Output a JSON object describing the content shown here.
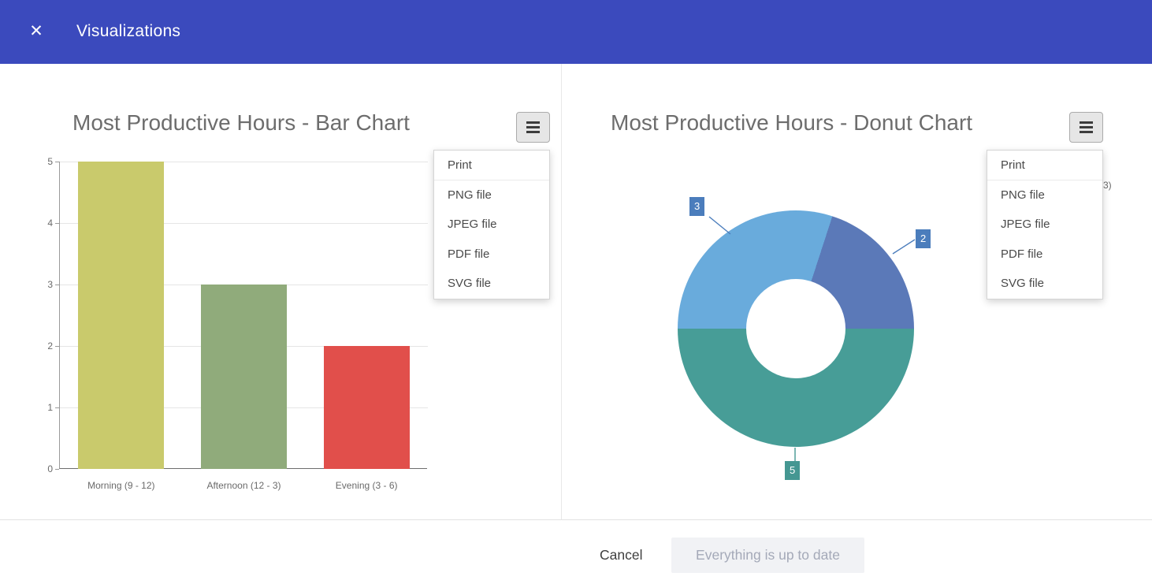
{
  "titlebar": {
    "title": "Visualizations",
    "close_icon": "✕"
  },
  "export_menu": {
    "items": [
      "Print",
      "PNG file",
      "JPEG file",
      "PDF file",
      "SVG file"
    ]
  },
  "chart_data": [
    {
      "type": "bar",
      "title": "Most Productive Hours - Bar Chart",
      "categories": [
        "Morning (9 - 12)",
        "Afternoon (12 - 3)",
        "Evening (3 - 6)"
      ],
      "values": [
        5,
        3,
        2
      ],
      "bar_colors": [
        "#c9ca6c",
        "#90ab7b",
        "#e14f4b"
      ],
      "xlabel": "",
      "ylabel": "",
      "ylim": [
        0,
        5
      ],
      "yticks": [
        0,
        1,
        2,
        3,
        4,
        5
      ],
      "grid": true,
      "legend_position": "none"
    },
    {
      "type": "donut",
      "title": "Most Productive Hours - Donut Chart",
      "categories": [
        "Morning (9 - 12)",
        "Afternoon (12 - 3)",
        "Evening (3 - 6)"
      ],
      "values": [
        5,
        3,
        2
      ],
      "slice_colors": [
        "#479d97",
        "#69abdc",
        "#5b79b8"
      ],
      "label_box_colors": [
        "#459792",
        "#4b7dbc",
        "#4b7dbc"
      ],
      "start_angle_deg": 90,
      "partial_occluded_label": "3)"
    }
  ],
  "footer": {
    "cancel_label": "Cancel",
    "status_label": "Everything is up to date"
  }
}
